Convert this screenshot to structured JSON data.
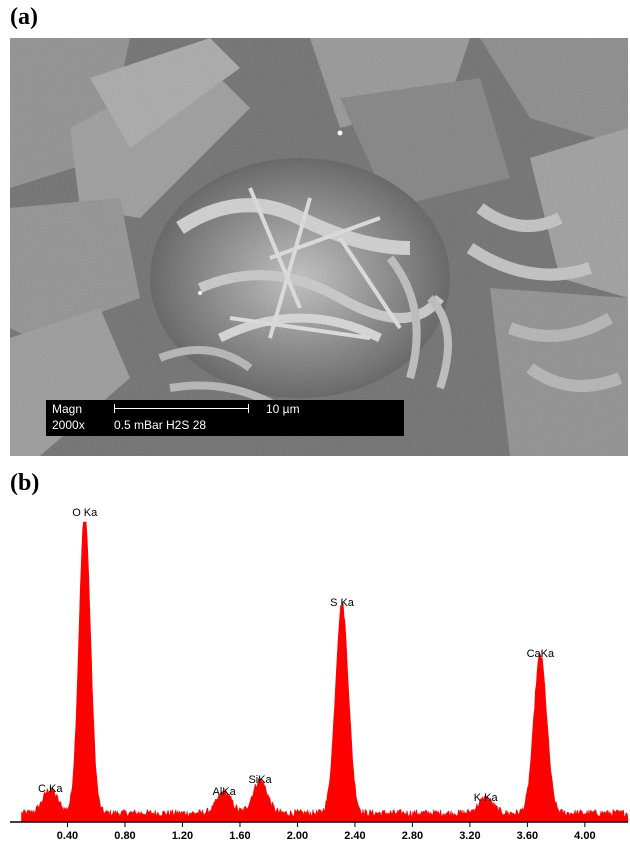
{
  "panel_a_label": "(a)",
  "panel_b_label": "(b)",
  "sem_databar": {
    "row1_left": "Magn",
    "row1_right": "10 µm",
    "row2_left": "2000x",
    "row2_right": "0.5 mBar H2S 28"
  },
  "colors": {
    "spectrum": "#ff0000",
    "axis": "#000000"
  },
  "chart_data": {
    "type": "area",
    "title": "",
    "xlabel": "",
    "ylabel": "",
    "xlim": [
      0.0,
      4.3
    ],
    "ylim": [
      0,
      100
    ],
    "x_ticks": [
      "0.40",
      "0.80",
      "1.20",
      "1.60",
      "2.00",
      "2.40",
      "2.80",
      "3.20",
      "3.60",
      "4.00"
    ],
    "peaks": [
      {
        "label": "C Ka",
        "x": 0.28,
        "y": 8
      },
      {
        "label": "O Ka",
        "x": 0.52,
        "y": 100
      },
      {
        "label": "AlKa",
        "x": 1.49,
        "y": 7
      },
      {
        "label": "SiKa",
        "x": 1.74,
        "y": 11
      },
      {
        "label": "S Ka",
        "x": 2.31,
        "y": 70
      },
      {
        "label": "K Ka",
        "x": 3.31,
        "y": 5
      },
      {
        "label": "CaKa",
        "x": 3.69,
        "y": 53
      }
    ],
    "background_level": 3
  }
}
